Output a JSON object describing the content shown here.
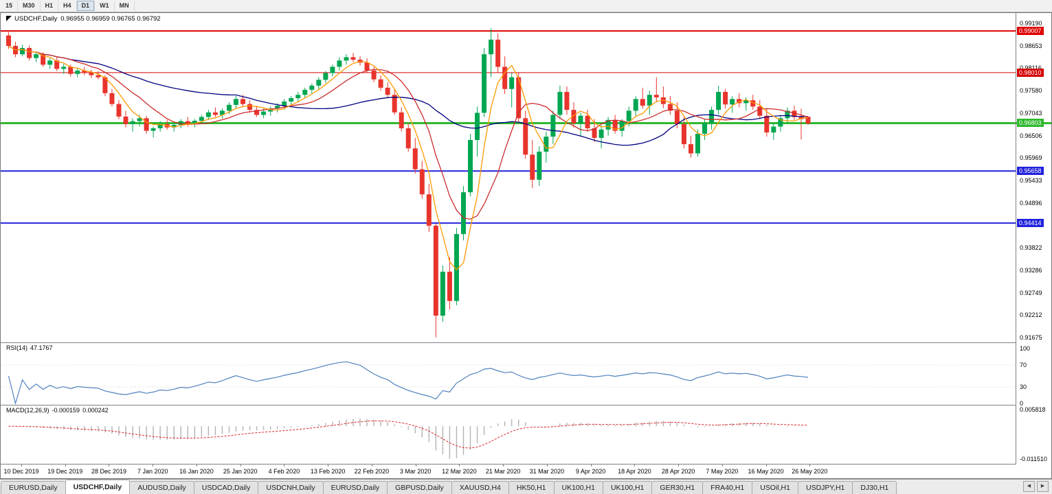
{
  "toolbar": {
    "timeframes": [
      "15",
      "M30",
      "H1",
      "H4",
      "D1",
      "W1",
      "MN"
    ],
    "active": "D1"
  },
  "tabs": {
    "items": [
      "EURUSD,Daily",
      "USDCHF,Daily",
      "AUDUSD,Daily",
      "USDCAD,Daily",
      "USDCNH,Daily",
      "EURUSD,Daily",
      "GBPUSD,Daily",
      "XAUUSD,H4",
      "HK50,H1",
      "UK100,H1",
      "UK100,H1",
      "GER30,H1",
      "FRA40,H1",
      "USOil,H1",
      "USDJPY,H1",
      "DJ30,H1"
    ],
    "active_index": 1,
    "scroll_left_icon": "◀",
    "scroll_right_icon": "▶"
  },
  "chart_data": {
    "type": "candlestick",
    "symbol": "USDCHF",
    "timeframe": "Daily",
    "title_symbol": "USDCHF,Daily",
    "title_ohlc": "0.96955 0.96959 0.96765 0.96792",
    "current": {
      "open": 0.96955,
      "high": 0.96959,
      "low": 0.96765,
      "close": 0.96792
    },
    "price_range": [
      0.91577,
      0.99436
    ],
    "y_axis_ticks": [
      "0.99190",
      "0.98653",
      "0.98116",
      "0.97580",
      "0.97043",
      "0.96506",
      "0.95969",
      "0.95433",
      "0.94896",
      "0.94359",
      "0.93822",
      "0.93286",
      "0.92749",
      "0.92212",
      "0.91675"
    ],
    "x_axis_labels": [
      "10 Dec 2019",
      "19 Dec 2019",
      "28 Dec 2019",
      "7 Jan 2020",
      "16 Jan 2020",
      "25 Jan 2020",
      "4 Feb 2020",
      "13 Feb 2020",
      "22 Feb 2020",
      "3 Mar 2020",
      "12 Mar 2020",
      "21 Mar 2020",
      "31 Mar 2020",
      "9 Apr 2020",
      "18 Apr 2020",
      "28 Apr 2020",
      "7 May 2020",
      "16 May 2020",
      "26 May 2020"
    ],
    "candle_colors": {
      "bull": "#00a651",
      "bear": "#e8342c"
    },
    "horizontal_lines": [
      {
        "price": 0.99007,
        "tag": "0.99007",
        "color": "#e00000",
        "width": 2,
        "across_axis": false
      },
      {
        "price": 0.9801,
        "tag": "0.98010",
        "color": "#d40000",
        "width": 1,
        "across_axis": false
      },
      {
        "price": 0.96803,
        "tag": "0.96803",
        "color": "#2eb82e",
        "width": 3,
        "across_axis": true
      },
      {
        "price": 0.95658,
        "tag": "0.95658",
        "color": "#2222dd",
        "width": 2,
        "across_axis": false
      },
      {
        "price": 0.94414,
        "tag": "0.94414",
        "color": "#2222dd",
        "width": 2,
        "across_axis": false
      }
    ],
    "moving_averages": [
      {
        "name": "ma-fast",
        "period": 5,
        "color": "#ff9900"
      },
      {
        "name": "ma-mid",
        "period": 10,
        "color": "#cc2b2b"
      },
      {
        "name": "ma-slow",
        "period": 34,
        "color": "#000080"
      }
    ],
    "candles": [
      [
        0.989,
        0.9898,
        0.9858,
        0.9865
      ],
      [
        0.9865,
        0.9875,
        0.9838,
        0.9845
      ],
      [
        0.9845,
        0.9868,
        0.984,
        0.986
      ],
      [
        0.986,
        0.9866,
        0.983,
        0.9836
      ],
      [
        0.9836,
        0.9852,
        0.9826,
        0.9845
      ],
      [
        0.9845,
        0.985,
        0.9815,
        0.982
      ],
      [
        0.982,
        0.9836,
        0.981,
        0.983
      ],
      [
        0.983,
        0.9838,
        0.9805,
        0.981
      ],
      [
        0.981,
        0.9822,
        0.9798,
        0.9815
      ],
      [
        0.9815,
        0.982,
        0.9792,
        0.9798
      ],
      [
        0.9798,
        0.9812,
        0.979,
        0.9806
      ],
      [
        0.9806,
        0.9815,
        0.9795,
        0.98
      ],
      [
        0.98,
        0.9808,
        0.9788,
        0.9795
      ],
      [
        0.9795,
        0.9805,
        0.9785,
        0.979
      ],
      [
        0.979,
        0.9795,
        0.9745,
        0.9752
      ],
      [
        0.9752,
        0.9762,
        0.972,
        0.9726
      ],
      [
        0.9726,
        0.9735,
        0.969,
        0.9696
      ],
      [
        0.9696,
        0.971,
        0.967,
        0.9678
      ],
      [
        0.9678,
        0.9692,
        0.966,
        0.9685
      ],
      [
        0.9685,
        0.97,
        0.9672,
        0.9692
      ],
      [
        0.9692,
        0.9698,
        0.9655,
        0.9662
      ],
      [
        0.9662,
        0.9672,
        0.9646,
        0.9668
      ],
      [
        0.9668,
        0.9685,
        0.966,
        0.9678
      ],
      [
        0.9678,
        0.9688,
        0.9665,
        0.967
      ],
      [
        0.967,
        0.9682,
        0.966,
        0.9676
      ],
      [
        0.9676,
        0.969,
        0.9668,
        0.9685
      ],
      [
        0.9685,
        0.9695,
        0.9672,
        0.9678
      ],
      [
        0.9678,
        0.969,
        0.967,
        0.9686
      ],
      [
        0.9686,
        0.97,
        0.9678,
        0.9695
      ],
      [
        0.9695,
        0.9712,
        0.9688,
        0.9706
      ],
      [
        0.9706,
        0.9718,
        0.9695,
        0.97
      ],
      [
        0.97,
        0.9715,
        0.9692,
        0.971
      ],
      [
        0.971,
        0.973,
        0.9702,
        0.9724
      ],
      [
        0.9724,
        0.9745,
        0.9715,
        0.9738
      ],
      [
        0.9738,
        0.9748,
        0.972,
        0.9726
      ],
      [
        0.9726,
        0.9735,
        0.9705,
        0.9712
      ],
      [
        0.9712,
        0.9722,
        0.9695,
        0.97
      ],
      [
        0.97,
        0.9715,
        0.9692,
        0.9708
      ],
      [
        0.9708,
        0.972,
        0.9698,
        0.9715
      ],
      [
        0.9715,
        0.9728,
        0.9706,
        0.9722
      ],
      [
        0.9722,
        0.9738,
        0.9712,
        0.9732
      ],
      [
        0.9732,
        0.9745,
        0.9722,
        0.974
      ],
      [
        0.974,
        0.9755,
        0.973,
        0.9748
      ],
      [
        0.9748,
        0.9765,
        0.974,
        0.976
      ],
      [
        0.976,
        0.9775,
        0.975,
        0.977
      ],
      [
        0.977,
        0.979,
        0.9762,
        0.9784
      ],
      [
        0.9784,
        0.9805,
        0.9776,
        0.98
      ],
      [
        0.98,
        0.982,
        0.9792,
        0.9815
      ],
      [
        0.9815,
        0.9838,
        0.9806,
        0.983
      ],
      [
        0.983,
        0.9845,
        0.982,
        0.9838
      ],
      [
        0.9838,
        0.9848,
        0.9826,
        0.9832
      ],
      [
        0.9832,
        0.984,
        0.9818,
        0.9825
      ],
      [
        0.9825,
        0.9835,
        0.98,
        0.9806
      ],
      [
        0.9806,
        0.9815,
        0.9778,
        0.9785
      ],
      [
        0.9785,
        0.9795,
        0.9758,
        0.9765
      ],
      [
        0.9765,
        0.9778,
        0.974,
        0.9748
      ],
      [
        0.9748,
        0.976,
        0.97,
        0.9706
      ],
      [
        0.9706,
        0.9718,
        0.966,
        0.9668
      ],
      [
        0.9668,
        0.968,
        0.9612,
        0.962
      ],
      [
        0.962,
        0.9645,
        0.956,
        0.957
      ],
      [
        0.957,
        0.959,
        0.95,
        0.951
      ],
      [
        0.951,
        0.9535,
        0.942,
        0.9435
      ],
      [
        0.9435,
        0.944,
        0.9168,
        0.922
      ],
      [
        0.922,
        0.934,
        0.9205,
        0.9325
      ],
      [
        0.9325,
        0.936,
        0.9235,
        0.9255
      ],
      [
        0.9255,
        0.943,
        0.9245,
        0.9415
      ],
      [
        0.9415,
        0.953,
        0.94,
        0.9515
      ],
      [
        0.9515,
        0.9655,
        0.9505,
        0.964
      ],
      [
        0.964,
        0.972,
        0.96,
        0.9705
      ],
      [
        0.9705,
        0.986,
        0.9695,
        0.9845
      ],
      [
        0.9845,
        0.9907,
        0.979,
        0.988
      ],
      [
        0.988,
        0.9895,
        0.98,
        0.9815
      ],
      [
        0.9815,
        0.984,
        0.975,
        0.9762
      ],
      [
        0.9762,
        0.98,
        0.9718,
        0.979
      ],
      [
        0.979,
        0.98,
        0.968,
        0.9692
      ],
      [
        0.9692,
        0.971,
        0.9595,
        0.9605
      ],
      [
        0.9605,
        0.964,
        0.9525,
        0.9545
      ],
      [
        0.9545,
        0.9625,
        0.953,
        0.9612
      ],
      [
        0.9612,
        0.966,
        0.9586,
        0.9648
      ],
      [
        0.9648,
        0.971,
        0.963,
        0.97
      ],
      [
        0.97,
        0.977,
        0.969,
        0.9755
      ],
      [
        0.9755,
        0.9768,
        0.97,
        0.9712
      ],
      [
        0.9712,
        0.973,
        0.967,
        0.968
      ],
      [
        0.968,
        0.9705,
        0.965,
        0.9698
      ],
      [
        0.9698,
        0.9712,
        0.966,
        0.9668
      ],
      [
        0.9668,
        0.969,
        0.9635,
        0.9645
      ],
      [
        0.9645,
        0.9675,
        0.962,
        0.9665
      ],
      [
        0.9665,
        0.9695,
        0.965,
        0.9688
      ],
      [
        0.9688,
        0.97,
        0.9655,
        0.9662
      ],
      [
        0.9662,
        0.969,
        0.9648,
        0.9685
      ],
      [
        0.9685,
        0.972,
        0.9672,
        0.971
      ],
      [
        0.971,
        0.9745,
        0.9695,
        0.9738
      ],
      [
        0.9738,
        0.9765,
        0.9715,
        0.9722
      ],
      [
        0.9722,
        0.9758,
        0.97,
        0.9748
      ],
      [
        0.9748,
        0.979,
        0.973,
        0.9742
      ],
      [
        0.9742,
        0.9768,
        0.9716,
        0.9726
      ],
      [
        0.9726,
        0.9745,
        0.97,
        0.971
      ],
      [
        0.971,
        0.973,
        0.9668,
        0.9678
      ],
      [
        0.9678,
        0.9695,
        0.962,
        0.963
      ],
      [
        0.963,
        0.965,
        0.9598,
        0.9608
      ],
      [
        0.9608,
        0.9665,
        0.96,
        0.9655
      ],
      [
        0.9655,
        0.969,
        0.964,
        0.968
      ],
      [
        0.968,
        0.972,
        0.9665,
        0.9712
      ],
      [
        0.9712,
        0.977,
        0.97,
        0.9755
      ],
      [
        0.9755,
        0.9762,
        0.9715,
        0.9725
      ],
      [
        0.9725,
        0.9745,
        0.9705,
        0.9738
      ],
      [
        0.9738,
        0.9752,
        0.9718,
        0.9728
      ],
      [
        0.9728,
        0.9742,
        0.971,
        0.9735
      ],
      [
        0.9735,
        0.9748,
        0.9712,
        0.972
      ],
      [
        0.972,
        0.9736,
        0.969,
        0.9698
      ],
      [
        0.9698,
        0.9715,
        0.9648,
        0.9658
      ],
      [
        0.9658,
        0.968,
        0.964,
        0.9672
      ],
      [
        0.9672,
        0.97,
        0.966,
        0.9692
      ],
      [
        0.9692,
        0.9718,
        0.968,
        0.971
      ],
      [
        0.971,
        0.9722,
        0.9688,
        0.9695
      ],
      [
        0.9695,
        0.9715,
        0.9641,
        0.969
      ],
      [
        0.96955,
        0.96959,
        0.96765,
        0.96792
      ]
    ],
    "rsi": {
      "label": "RSI(14)",
      "current": "47.1767",
      "period": 14,
      "range": [
        0,
        100
      ],
      "axis_ticks": [
        "100",
        "70",
        "30",
        "0"
      ],
      "axis_tick_values": [
        100,
        70,
        30,
        0
      ],
      "levels": [
        70,
        30
      ],
      "color": "#4f81bd"
    },
    "macd": {
      "label": "MACD(12,26,9)",
      "current_main": "-0.000159",
      "current_signal": "0.000242",
      "fast": 12,
      "slow": 26,
      "signal_period": 9,
      "range": [
        -0.01151,
        0.005818
      ],
      "axis_ticks": [
        {
          "text": "0.005818",
          "value": 0.005818
        },
        {
          "text": "-0.011510",
          "value": -0.01151
        }
      ],
      "histogram_color": "#b3b3b3",
      "signal_color": "#dd2222"
    }
  }
}
